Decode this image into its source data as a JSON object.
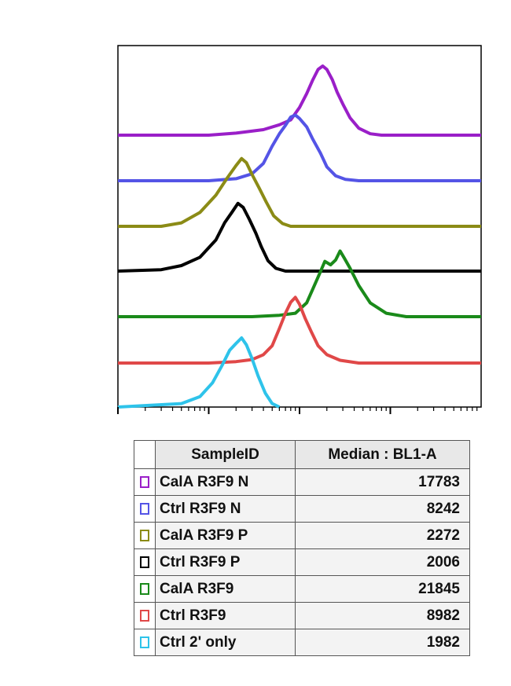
{
  "chart_data": {
    "type": "line",
    "xlabel": "",
    "ylabel": "",
    "x_scale": "log",
    "grid": false,
    "layout": "offset overlay histograms",
    "series": [
      {
        "color": "#9a1fc8",
        "points": [
          [
            100,
            0
          ],
          [
            1000,
            0
          ],
          [
            2000,
            0.03
          ],
          [
            4000,
            0.08
          ],
          [
            6000,
            0.15
          ],
          [
            8000,
            0.22
          ],
          [
            10000,
            0.4
          ],
          [
            12000,
            0.6
          ],
          [
            14000,
            0.8
          ],
          [
            16000,
            0.95
          ],
          [
            18000,
            1.0
          ],
          [
            20000,
            0.95
          ],
          [
            23000,
            0.8
          ],
          [
            26000,
            0.62
          ],
          [
            30000,
            0.45
          ],
          [
            36000,
            0.25
          ],
          [
            45000,
            0.1
          ],
          [
            60000,
            0.02
          ],
          [
            80000,
            0
          ],
          [
            1000000,
            0
          ]
        ]
      },
      {
        "color": "#5454e6",
        "points": [
          [
            100,
            0
          ],
          [
            1000,
            0
          ],
          [
            2000,
            0.03
          ],
          [
            3000,
            0.1
          ],
          [
            4000,
            0.25
          ],
          [
            5000,
            0.5
          ],
          [
            6000,
            0.68
          ],
          [
            7000,
            0.8
          ],
          [
            8000,
            0.92
          ],
          [
            9000,
            0.95
          ],
          [
            10000,
            0.9
          ],
          [
            12000,
            0.78
          ],
          [
            14000,
            0.6
          ],
          [
            17000,
            0.4
          ],
          [
            20000,
            0.2
          ],
          [
            25000,
            0.07
          ],
          [
            32000,
            0.02
          ],
          [
            45000,
            0
          ],
          [
            1000000,
            0
          ]
        ]
      },
      {
        "color": "#8b8b16",
        "points": [
          [
            100,
            0
          ],
          [
            300,
            0
          ],
          [
            500,
            0.05
          ],
          [
            800,
            0.2
          ],
          [
            1200,
            0.45
          ],
          [
            1600,
            0.7
          ],
          [
            2000,
            0.88
          ],
          [
            2300,
            0.98
          ],
          [
            2600,
            0.92
          ],
          [
            3000,
            0.75
          ],
          [
            3600,
            0.55
          ],
          [
            4300,
            0.35
          ],
          [
            5200,
            0.15
          ],
          [
            6500,
            0.04
          ],
          [
            8000,
            0
          ],
          [
            1000000,
            0
          ]
        ]
      },
      {
        "color": "#000000",
        "points": [
          [
            100,
            0
          ],
          [
            300,
            0.02
          ],
          [
            500,
            0.08
          ],
          [
            800,
            0.2
          ],
          [
            1200,
            0.45
          ],
          [
            1500,
            0.7
          ],
          [
            1800,
            0.85
          ],
          [
            2100,
            0.98
          ],
          [
            2400,
            0.92
          ],
          [
            2800,
            0.75
          ],
          [
            3300,
            0.55
          ],
          [
            3800,
            0.35
          ],
          [
            4500,
            0.15
          ],
          [
            5500,
            0.04
          ],
          [
            7000,
            0
          ],
          [
            1000000,
            0
          ]
        ]
      },
      {
        "color": "#1a8a1a",
        "points": [
          [
            100,
            0
          ],
          [
            1000,
            0
          ],
          [
            3000,
            0
          ],
          [
            6000,
            0.02
          ],
          [
            9000,
            0.05
          ],
          [
            12000,
            0.2
          ],
          [
            14000,
            0.4
          ],
          [
            17000,
            0.65
          ],
          [
            19000,
            0.8
          ],
          [
            22000,
            0.75
          ],
          [
            25000,
            0.82
          ],
          [
            28000,
            0.95
          ],
          [
            31000,
            0.85
          ],
          [
            36000,
            0.7
          ],
          [
            45000,
            0.45
          ],
          [
            60000,
            0.2
          ],
          [
            90000,
            0.05
          ],
          [
            150000,
            0
          ],
          [
            1000000,
            0
          ]
        ]
      },
      {
        "color": "#e04848",
        "points": [
          [
            100,
            0
          ],
          [
            1000,
            0
          ],
          [
            2000,
            0.02
          ],
          [
            3000,
            0.05
          ],
          [
            4000,
            0.12
          ],
          [
            5000,
            0.25
          ],
          [
            6000,
            0.5
          ],
          [
            7000,
            0.72
          ],
          [
            8000,
            0.88
          ],
          [
            9000,
            0.95
          ],
          [
            10000,
            0.85
          ],
          [
            11500,
            0.65
          ],
          [
            13500,
            0.45
          ],
          [
            16000,
            0.25
          ],
          [
            20000,
            0.12
          ],
          [
            28000,
            0.04
          ],
          [
            45000,
            0
          ],
          [
            1000000,
            0
          ]
        ]
      },
      {
        "color": "#2ec3ea",
        "points": [
          [
            100,
            0
          ],
          [
            500,
            0.05
          ],
          [
            800,
            0.15
          ],
          [
            1100,
            0.35
          ],
          [
            1400,
            0.6
          ],
          [
            1700,
            0.82
          ],
          [
            2000,
            0.92
          ],
          [
            2300,
            1.0
          ],
          [
            2600,
            0.9
          ],
          [
            3000,
            0.7
          ],
          [
            3500,
            0.45
          ],
          [
            4200,
            0.2
          ],
          [
            5000,
            0.05
          ],
          [
            6000,
            0
          ]
        ]
      }
    ]
  },
  "legend": {
    "headers": {
      "blank": "",
      "sample": "SampleID",
      "median": "Median : BL1-A"
    },
    "rows": [
      {
        "color": "#9a1fc8",
        "name": "CalA R3F9 N",
        "value": "17783"
      },
      {
        "color": "#5454e6",
        "name": "Ctrl R3F9 N",
        "value": "8242"
      },
      {
        "color": "#8b8b16",
        "name": "CalA R3F9 P",
        "value": "2272"
      },
      {
        "color": "#000000",
        "name": "Ctrl R3F9 P",
        "value": "2006"
      },
      {
        "color": "#1a8a1a",
        "name": "CalA R3F9",
        "value": "21845"
      },
      {
        "color": "#e04848",
        "name": "Ctrl R3F9",
        "value": "8982"
      },
      {
        "color": "#2ec3ea",
        "name": "Ctrl 2' only",
        "value": "1982"
      }
    ]
  }
}
